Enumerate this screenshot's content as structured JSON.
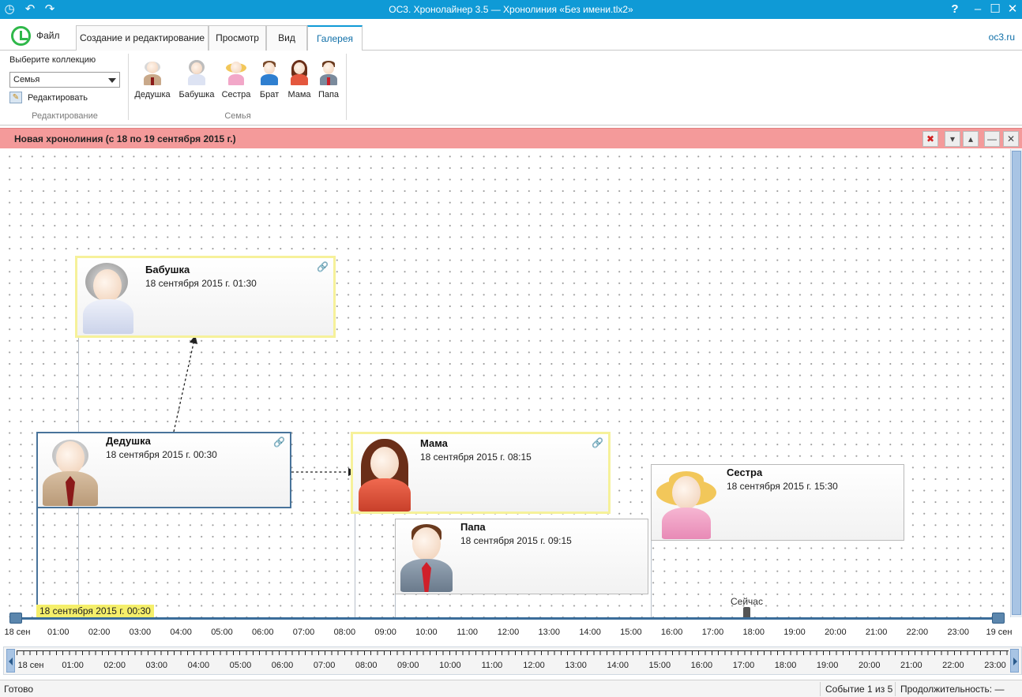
{
  "window": {
    "title": "ОС3. Хронолайнер 3.5 — Хронолиния «Без имени.tlx2»"
  },
  "tabs": {
    "file": "Файл",
    "items": [
      "Создание и редактирование",
      "Просмотр",
      "Вид",
      "Галерея"
    ],
    "active": "Галерея",
    "site": "oc3.ru"
  },
  "ribbon": {
    "collection_label": "Выберите коллекцию",
    "collection_value": "Семья",
    "edit_button": "Редактировать",
    "edit_group": "Редактирование",
    "gallery_group": "Семья",
    "gallery": [
      "Дедушка",
      "Бабушка",
      "Сестра",
      "Брат",
      "Мама",
      "Папа"
    ]
  },
  "timeline": {
    "title": "Новая хронолиния (с 18 по 19 сентября 2015 г.)",
    "events": {
      "babushka": {
        "name": "Бабушка",
        "date": "18 сентября 2015 г. 01:30"
      },
      "dedushka": {
        "name": "Дедушка",
        "date": "18 сентября 2015 г. 00:30"
      },
      "mama": {
        "name": "Мама",
        "date": "18 сентября 2015 г. 08:15"
      },
      "papa": {
        "name": "Папа",
        "date": "18 сентября 2015 г. 09:15"
      },
      "sestra": {
        "name": "Сестра",
        "date": "18 сентября 2015 г. 15:30"
      }
    },
    "cursor_label": "18 сентября 2015 г. 00:30",
    "now_label": "Сейчас",
    "axis_labels": [
      "18 сен",
      "01:00",
      "02:00",
      "03:00",
      "04:00",
      "05:00",
      "06:00",
      "07:00",
      "08:00",
      "09:00",
      "10:00",
      "11:00",
      "12:00",
      "13:00",
      "14:00",
      "15:00",
      "16:00",
      "17:00",
      "18:00",
      "19:00",
      "20:00",
      "21:00",
      "22:00",
      "23:00",
      "19 сен"
    ],
    "overview_labels": [
      "18 сен",
      "01:00",
      "02:00",
      "03:00",
      "04:00",
      "05:00",
      "06:00",
      "07:00",
      "08:00",
      "09:00",
      "10:00",
      "11:00",
      "12:00",
      "13:00",
      "14:00",
      "15:00",
      "16:00",
      "17:00",
      "18:00",
      "19:00",
      "20:00",
      "21:00",
      "22:00",
      "23:00"
    ]
  },
  "status": {
    "ready": "Готово",
    "event_counter": "Событие 1 из 5",
    "duration": "Продолжительность: —"
  },
  "colors": {
    "titlebar": "#0f9ad6",
    "timeline_header": "#f49a9a",
    "highlight": "#f6f19a",
    "cursor_tag": "#f5ef6a",
    "axis": "#3b6d9a"
  }
}
